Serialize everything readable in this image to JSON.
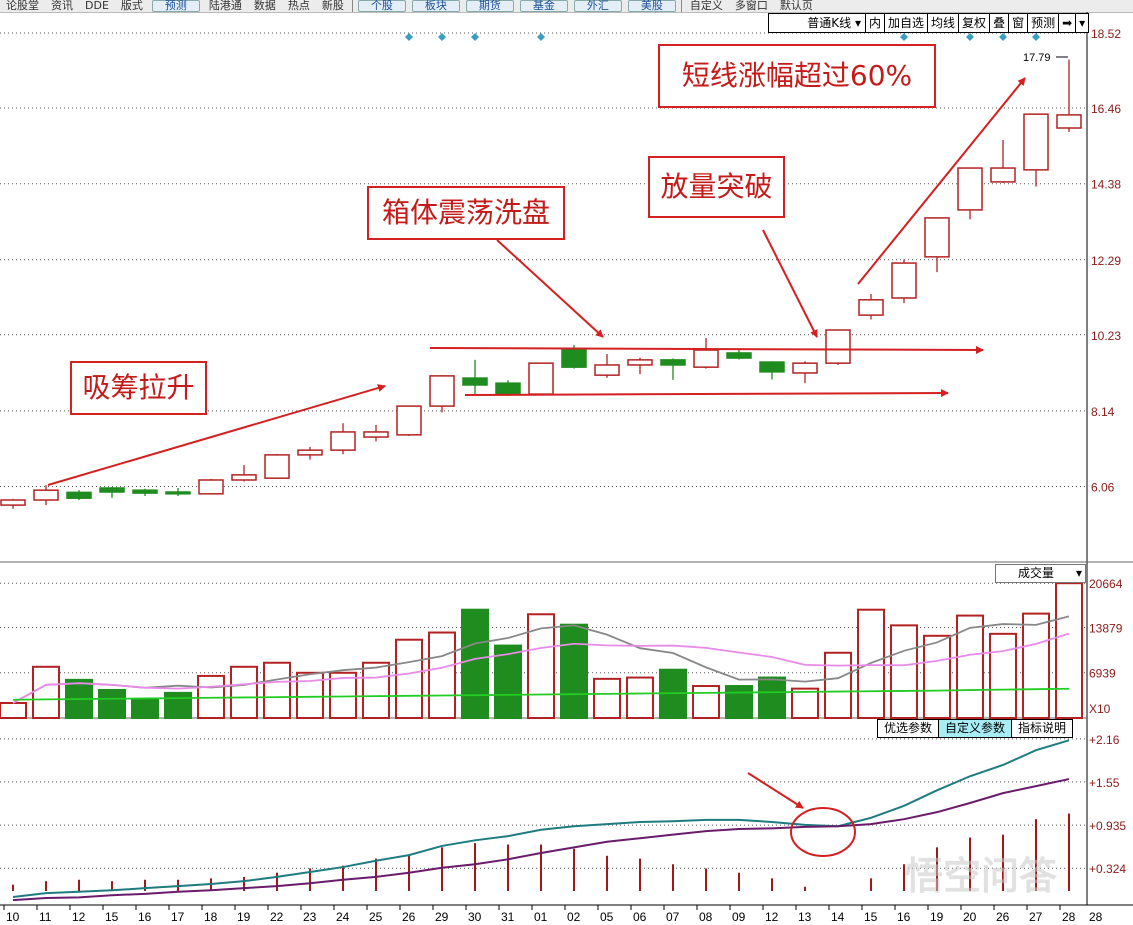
{
  "toolbar": {
    "items": [
      "论股堂",
      "资讯",
      "DDE",
      "版式"
    ],
    "predict": "预测",
    "items2": [
      "陆港通",
      "数据",
      "热点",
      "新股"
    ],
    "markets": [
      "个股",
      "板块",
      "期货",
      "基金",
      "外汇",
      "美股"
    ],
    "right": [
      "自定义",
      "多窗口",
      "默认页"
    ]
  },
  "ktoolbar": {
    "selector": "普通K线",
    "buttons": [
      "内",
      "加自选",
      "均线",
      "复权",
      "叠",
      "窗",
      "预测"
    ],
    "icons": [
      "jump-to-end-icon",
      "dropdown-icon"
    ]
  },
  "volume_panel": {
    "label": "成交量",
    "multiplier": "X10"
  },
  "macd_tabs": [
    "优选参数",
    "自定义参数",
    "指标说明"
  ],
  "annotations": [
    "吸筹拉升",
    "箱体震荡洗盘",
    "放量突破",
    "短线涨幅超过60%"
  ],
  "watermark": "悟空问答",
  "colors": {
    "up": "#b22222",
    "down": "#1e8c1e",
    "dif": "#1e7b80",
    "dea": "#6a1b6a",
    "ma5": "#888888",
    "ma10": "#e88ae8",
    "ma_long": "#22cc22",
    "annotation": "#d42020",
    "marker": "#3a9ec0"
  },
  "chart_data": [
    {
      "type": "candlestick",
      "title": "",
      "price_ticks": [
        "18.52",
        "16.46",
        "14.38",
        "12.29",
        "10.23",
        "8.14",
        "6.06"
      ],
      "ylim": [
        4.5,
        18.52
      ],
      "max_label": "17.79",
      "dates": [
        "10",
        "11",
        "12",
        "15",
        "16",
        "17",
        "18",
        "19",
        "22",
        "23",
        "24",
        "25",
        "26",
        "29",
        "30",
        "31",
        "01",
        "02",
        "05",
        "06",
        "07",
        "08",
        "09",
        "12",
        "13",
        "14",
        "15",
        "16",
        "19",
        "20",
        "26",
        "27",
        "28"
      ],
      "ohlc": [
        [
          5.55,
          5.72,
          5.45,
          5.69
        ],
        [
          5.69,
          6.1,
          5.55,
          5.96
        ],
        [
          5.9,
          5.96,
          5.69,
          5.74
        ],
        [
          6.02,
          6.05,
          5.75,
          5.91
        ],
        [
          5.96,
          6.0,
          5.8,
          5.88
        ],
        [
          5.91,
          6.02,
          5.8,
          5.86
        ],
        [
          5.86,
          6.27,
          5.84,
          6.24
        ],
        [
          6.24,
          6.65,
          6.2,
          6.38
        ],
        [
          6.29,
          6.95,
          6.27,
          6.93
        ],
        [
          6.93,
          7.15,
          6.8,
          7.06
        ],
        [
          7.06,
          7.8,
          6.95,
          7.56
        ],
        [
          7.42,
          7.75,
          7.3,
          7.56
        ],
        [
          7.48,
          8.27,
          7.45,
          8.27
        ],
        [
          8.27,
          9.12,
          8.1,
          9.1
        ],
        [
          9.04,
          9.54,
          8.57,
          8.85
        ],
        [
          8.9,
          8.98,
          8.55,
          8.6
        ],
        [
          8.6,
          9.47,
          8.58,
          9.45
        ],
        [
          9.81,
          9.95,
          9.3,
          9.34
        ],
        [
          9.12,
          9.7,
          9.05,
          9.4
        ],
        [
          9.4,
          9.6,
          9.15,
          9.54
        ],
        [
          9.54,
          9.58,
          8.99,
          9.4
        ],
        [
          9.34,
          10.14,
          9.3,
          9.81
        ],
        [
          9.73,
          9.85,
          9.55,
          9.59
        ],
        [
          9.48,
          9.5,
          9.0,
          9.21
        ],
        [
          9.18,
          9.5,
          8.9,
          9.45
        ],
        [
          9.45,
          10.36,
          9.4,
          10.36
        ],
        [
          10.77,
          11.35,
          10.65,
          11.19
        ],
        [
          11.24,
          12.3,
          11.1,
          12.2
        ],
        [
          12.37,
          13.44,
          11.95,
          13.44
        ],
        [
          13.66,
          14.81,
          13.4,
          14.81
        ],
        [
          14.43,
          15.58,
          14.4,
          14.81
        ],
        [
          14.76,
          16.29,
          14.3,
          16.29
        ],
        [
          15.91,
          17.79,
          15.8,
          16.27
        ]
      ],
      "marker_dates": [
        "26",
        "29",
        "30",
        "01",
        "16",
        "20",
        "26",
        "27"
      ]
    },
    {
      "type": "bar",
      "title": "成交量",
      "ticks": [
        "20664",
        "13879",
        "6939"
      ],
      "ylim": [
        0,
        21500
      ],
      "values": [
        2300,
        7850,
        5850,
        4300,
        2900,
        3850,
        6450,
        7850,
        8470,
        6930,
        6930,
        8470,
        12000,
        13100,
        16600,
        11100,
        15900,
        14300,
        6000,
        6200,
        7400,
        4900,
        4900,
        6200,
        4500,
        10000,
        16600,
        14200,
        12600,
        15700,
        12900,
        16000,
        20664
      ],
      "ma_long": [
        2800,
        2850,
        2900,
        2950,
        3000,
        3050,
        3100,
        3150,
        3200,
        3250,
        3300,
        3350,
        3400,
        3450,
        3500,
        3550,
        3600,
        3650,
        3700,
        3750,
        3800,
        3850,
        3900,
        3950,
        4000,
        4050,
        4100,
        4150,
        4200,
        4280,
        4350,
        4420,
        4480
      ]
    },
    {
      "type": "line",
      "title": "MACD",
      "ticks": [
        "+2.16",
        "+1.55",
        "+0.935",
        "+0.324"
      ],
      "ylim": [
        -0.2,
        2.3
      ],
      "dif": [
        -0.085,
        -0.03,
        -0.01,
        0.01,
        0.04,
        0.07,
        0.1,
        0.14,
        0.2,
        0.27,
        0.34,
        0.43,
        0.51,
        0.64,
        0.72,
        0.78,
        0.87,
        0.92,
        0.95,
        0.98,
        0.99,
        1.01,
        1.01,
        0.98,
        0.94,
        0.92,
        1.04,
        1.21,
        1.43,
        1.63,
        1.79,
        2.0,
        2.14
      ],
      "dea": [
        -0.13,
        -0.1,
        -0.09,
        -0.06,
        -0.04,
        -0.01,
        0.01,
        0.04,
        0.07,
        0.11,
        0.16,
        0.2,
        0.26,
        0.33,
        0.38,
        0.45,
        0.54,
        0.62,
        0.7,
        0.75,
        0.8,
        0.85,
        0.88,
        0.89,
        0.91,
        0.92,
        0.95,
        1.02,
        1.12,
        1.25,
        1.39,
        1.49,
        1.59
      ]
    }
  ]
}
